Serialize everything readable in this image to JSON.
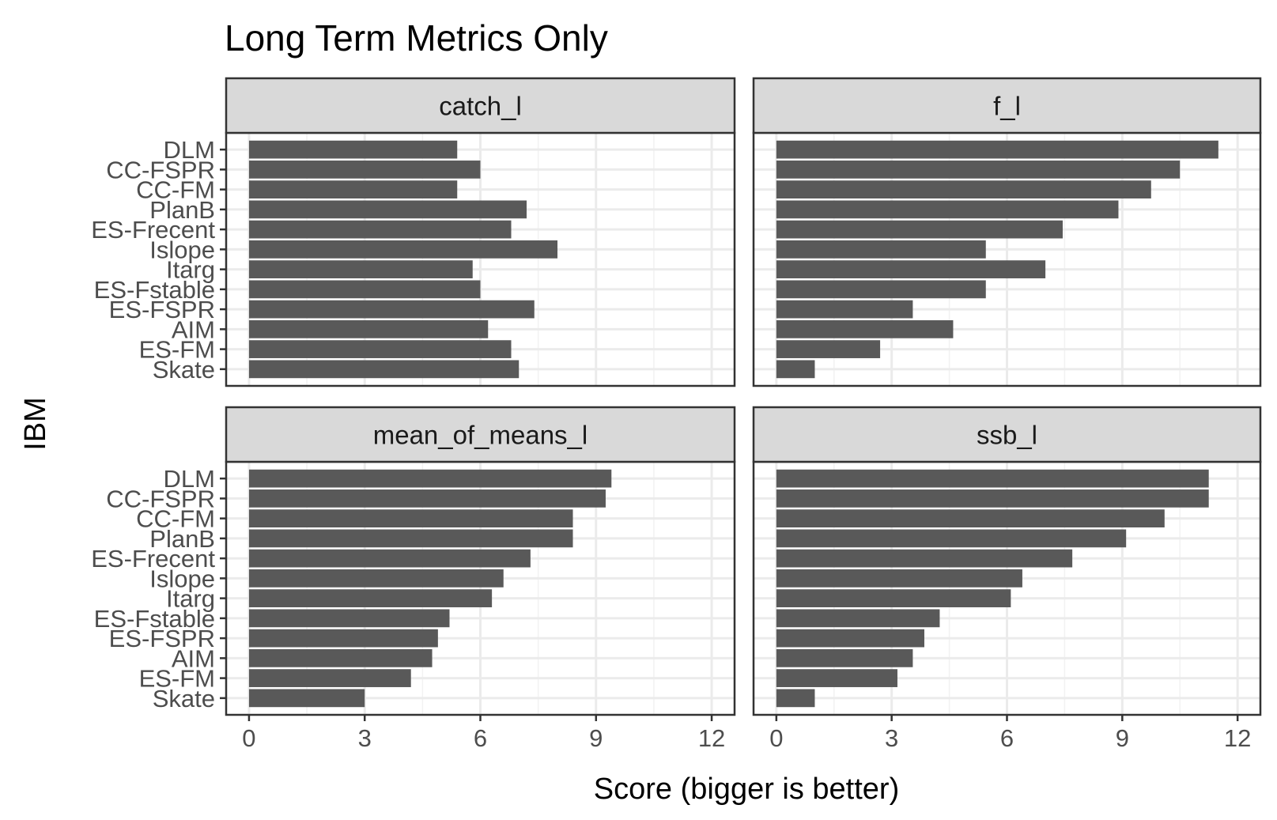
{
  "chart_data": {
    "type": "bar",
    "title": "Long Term Metrics Only",
    "xlabel": "Score (bigger is better)",
    "ylabel": "IBM",
    "xlim": [
      0,
      12
    ],
    "x_ticks": [
      "0",
      "3",
      "6",
      "9",
      "12"
    ],
    "grid": true,
    "bar_color": "#595959",
    "categories": [
      "DLM",
      "CC-FSPR",
      "CC-FM",
      "PlanB",
      "ES-Frecent",
      "Islope",
      "Itarg",
      "ES-Fstable",
      "ES-FSPR",
      "AIM",
      "ES-FM",
      "Skate"
    ],
    "panels": [
      {
        "name": "catch_l",
        "values": [
          5.4,
          6.0,
          5.4,
          7.2,
          6.8,
          8.0,
          5.8,
          6.0,
          7.4,
          6.2,
          6.8,
          7.0
        ]
      },
      {
        "name": "f_l",
        "values": [
          11.5,
          10.5,
          9.75,
          8.9,
          7.45,
          5.45,
          7.0,
          5.45,
          3.55,
          4.6,
          2.7,
          1.0
        ]
      },
      {
        "name": "mean_of_means_l",
        "values": [
          9.4,
          9.25,
          8.4,
          8.4,
          7.3,
          6.6,
          6.3,
          5.2,
          4.9,
          4.75,
          4.2,
          3.0
        ]
      },
      {
        "name": "ssb_l",
        "values": [
          11.25,
          11.25,
          10.1,
          9.1,
          7.7,
          6.4,
          6.1,
          4.25,
          3.85,
          3.55,
          3.15,
          1.0
        ]
      }
    ]
  }
}
